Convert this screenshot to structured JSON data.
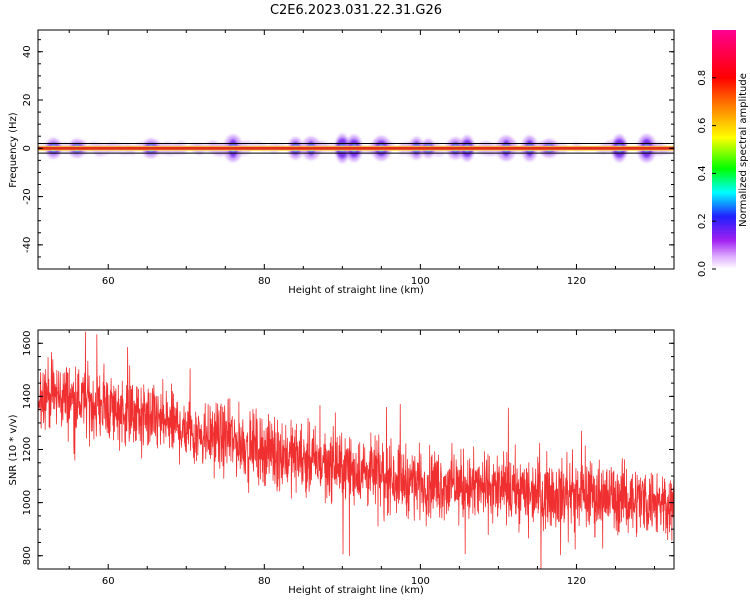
{
  "figure_title": "C2E6.2023.031.22.31.G26",
  "colors": {
    "series": "#f03030",
    "band": "#e03020",
    "background": "#ffffff"
  },
  "chart_data": [
    {
      "type": "heatmap",
      "xlabel": "Height of straight line (km)",
      "ylabel": "Frequency (Hz)",
      "xlim": [
        51,
        132.5
      ],
      "ylim": [
        -50,
        49
      ],
      "x_ticks": [
        {
          "v": 60,
          "label": "60"
        },
        {
          "v": 80,
          "label": "80"
        },
        {
          "v": 100,
          "label": "100"
        },
        {
          "v": 120,
          "label": "120"
        }
      ],
      "y_ticks": [
        {
          "v": 40,
          "label": "40"
        },
        {
          "v": 20,
          "label": "20"
        },
        {
          "v": 0,
          "label": "0"
        },
        {
          "v": -20,
          "label": "-20"
        },
        {
          "v": -40,
          "label": "-40"
        }
      ],
      "band_center_frequency": 0,
      "horizontal_reference_lines": [
        2,
        -2
      ],
      "activity_clusters_km": [
        53,
        56,
        65.5,
        76,
        84,
        86,
        90,
        91.5,
        95,
        99.5,
        101,
        104.5,
        106,
        111,
        114,
        116.5,
        125.5,
        129
      ],
      "colorbar": {
        "label": "Normalized spectral amplitude",
        "range": [
          0,
          1
        ],
        "ticks": [
          {
            "v": 0.0,
            "label": "0.0"
          },
          {
            "v": 0.2,
            "label": "0.2"
          },
          {
            "v": 0.4,
            "label": "0.4"
          },
          {
            "v": 0.6,
            "label": "0.6"
          },
          {
            "v": 0.8,
            "label": "0.8"
          }
        ]
      }
    },
    {
      "type": "line",
      "xlabel": "Height of straight line (km)",
      "ylabel": "SNR (10 * v/v)",
      "xlim": [
        51,
        132.5
      ],
      "ylim": [
        750,
        1650
      ],
      "x_ticks": [
        {
          "v": 60,
          "label": "60"
        },
        {
          "v": 80,
          "label": "80"
        },
        {
          "v": 100,
          "label": "100"
        },
        {
          "v": 120,
          "label": "120"
        }
      ],
      "y_ticks": [
        {
          "v": 800,
          "label": "800"
        },
        {
          "v": 1000,
          "label": "1000"
        },
        {
          "v": 1200,
          "label": "1200"
        },
        {
          "v": 1400,
          "label": "1400"
        },
        {
          "v": 1600,
          "label": "1600"
        }
      ],
      "trend": {
        "x": [
          51,
          60,
          70,
          80,
          90,
          100,
          110,
          120,
          132.5
        ],
        "y": [
          1420,
          1360,
          1280,
          1200,
          1130,
          1075,
          1050,
          1030,
          1000
        ]
      },
      "noise_amplitude": 90,
      "series_color": "#f03030"
    }
  ]
}
